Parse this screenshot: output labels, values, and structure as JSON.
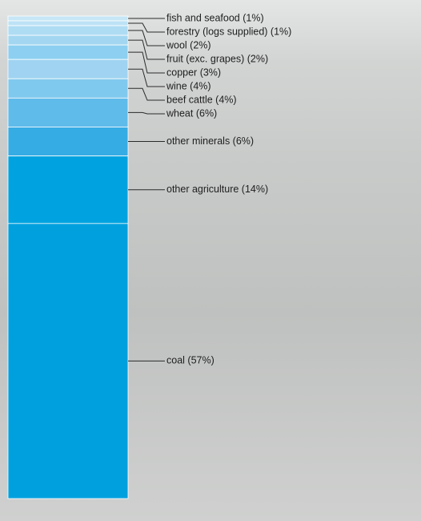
{
  "chart_data": {
    "type": "stacked-column",
    "values": [
      1,
      1,
      2,
      2,
      3,
      4,
      4,
      6,
      6,
      14,
      57
    ],
    "value_labels": [
      "fish and seafood (1%)",
      "forestry (logs supplied) (1%)",
      "wool (2%)",
      "fruit (exc. grapes) (2%)",
      "copper (3%)",
      "wine (4%)",
      "beef cattle (4%)",
      "wheat (6%)",
      "other minerals (6%)",
      "other agriculture (14%)",
      "coal (57%)"
    ],
    "colors": [
      "#c7e6f6",
      "#bce2f5",
      "#aedcf3",
      "#a3d7f1",
      "#8ccff0",
      "#9fd3f1",
      "#80c9ee",
      "#5fbbea",
      "#36ace4",
      "#00a3df",
      "#00a0de"
    ]
  }
}
